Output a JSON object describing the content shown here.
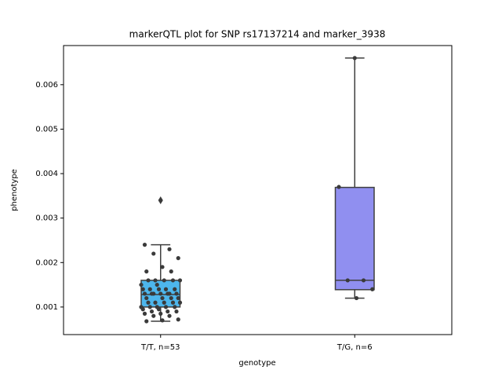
{
  "chart_data": {
    "type": "box",
    "title": "markerQTL plot for SNP rs17137214 and marker_3938",
    "x_label": "genotype",
    "y_label": "phenotype",
    "categories": [
      "T/T, n=53",
      "T/G, n=6"
    ],
    "colors": [
      "#4db6ec",
      "#908ff0"
    ],
    "boxes": [
      {
        "whislo": 0.00068,
        "q1": 0.001,
        "med": 0.00128,
        "q3": 0.0016,
        "whishi": 0.0024,
        "fliers": [
          0.0034
        ]
      },
      {
        "whislo": 0.0012,
        "q1": 0.00139,
        "med": 0.0016,
        "q3": 0.00369,
        "whishi": 0.0066,
        "fliers": []
      }
    ],
    "points": [
      [
        0.0034,
        0.0024,
        0.0023,
        0.0022,
        0.0021,
        0.0019,
        0.0018,
        0.0018,
        0.0016,
        0.0016,
        0.0016,
        0.0016,
        0.0016,
        0.0015,
        0.0015,
        0.0014,
        0.0014,
        0.0014,
        0.0014,
        0.0014,
        0.0013,
        0.0013,
        0.0013,
        0.0013,
        0.0013,
        0.0013,
        0.0013,
        0.0012,
        0.0012,
        0.0012,
        0.0012,
        0.0011,
        0.0011,
        0.0011,
        0.0011,
        0.0011,
        0.001,
        0.001,
        0.001,
        0.001,
        0.001,
        0.00095,
        0.00095,
        0.0009,
        0.0009,
        0.0009,
        0.00085,
        0.00085,
        0.0008,
        0.0008,
        0.00072,
        0.0007,
        0.00068
      ],
      [
        0.0066,
        0.0037,
        0.0016,
        0.0016,
        0.0014,
        0.0012
      ]
    ],
    "ylim": [
      0.00038,
      0.00688
    ],
    "yticks": [
      0.001,
      0.002,
      0.003,
      0.004,
      0.005,
      0.006
    ]
  }
}
